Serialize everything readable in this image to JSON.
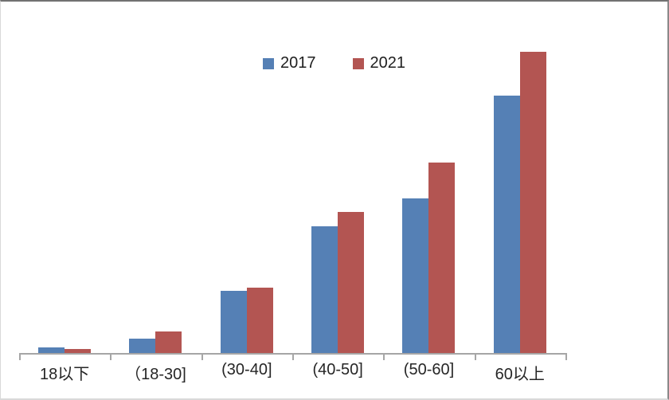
{
  "chart_data": {
    "type": "bar",
    "title": "",
    "xlabel": "",
    "ylabel": "",
    "categories": [
      "18以下",
      "（18-30]",
      "(30-40]",
      "(40-50]",
      "(50-60]",
      "60以上"
    ],
    "series": [
      {
        "name": "2017",
        "color": "#5580B5",
        "values": [
          2.1,
          5.0,
          20.8,
          42.2,
          51.4,
          85.5
        ]
      },
      {
        "name": "2021",
        "color": "#B35552",
        "values": [
          1.6,
          7.4,
          21.9,
          47.0,
          63.3,
          100.0
        ]
      }
    ],
    "ylim": [
      0,
      110
    ],
    "grid": false,
    "y_axis_visible": false,
    "legend_position": "top-center",
    "axis_color": "#a6a6a6",
    "text_color": "#262626"
  }
}
